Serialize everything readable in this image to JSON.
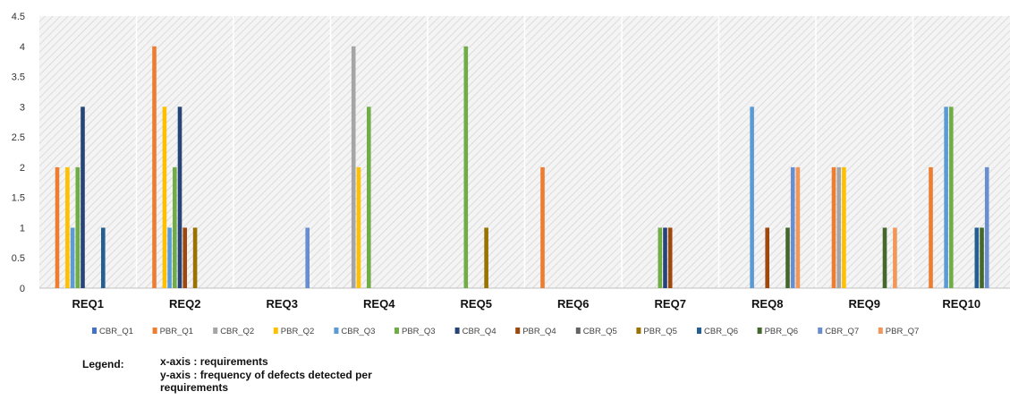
{
  "chart_data": {
    "type": "bar",
    "title": "",
    "xlabel": "",
    "ylabel": "",
    "ylim": [
      0,
      4.5
    ],
    "yticks": [
      0,
      0.5,
      1,
      1.5,
      2,
      2.5,
      3,
      3.5,
      4,
      4.5
    ],
    "ytick_labels": [
      "0",
      "0.5",
      "1",
      "1.5",
      "2",
      "2.5",
      "3",
      "3.5",
      "4",
      "4.5"
    ],
    "grid": false,
    "legend_position": "bottom",
    "categories": [
      "REQ1",
      "REQ2",
      "REQ3",
      "REQ4",
      "REQ5",
      "REQ6",
      "REQ7",
      "REQ8",
      "REQ9",
      "REQ10"
    ],
    "series": [
      {
        "name": "CBR_Q1",
        "color": "#4472C4",
        "values": [
          0,
          0,
          0,
          0,
          0,
          0,
          0,
          0,
          0,
          0
        ]
      },
      {
        "name": "PBR_Q1",
        "color": "#ED7D31",
        "values": [
          2,
          4,
          0,
          0,
          0,
          2,
          0,
          0,
          2,
          2
        ]
      },
      {
        "name": "CBR_Q2",
        "color": "#A5A5A5",
        "values": [
          0,
          0,
          0,
          4,
          0,
          0,
          0,
          0,
          2,
          0
        ]
      },
      {
        "name": "PBR_Q2",
        "color": "#FFC000",
        "values": [
          2,
          3,
          0,
          2,
          0,
          0,
          0,
          0,
          2,
          0
        ]
      },
      {
        "name": "CBR_Q3",
        "color": "#5B9BD5",
        "values": [
          1,
          1,
          0,
          0,
          0,
          0,
          0,
          3,
          0,
          3
        ]
      },
      {
        "name": "PBR_Q3",
        "color": "#70AD47",
        "values": [
          2,
          2,
          0,
          3,
          4,
          0,
          1,
          0,
          0,
          3
        ]
      },
      {
        "name": "CBR_Q4",
        "color": "#264478",
        "values": [
          3,
          3,
          0,
          0,
          0,
          0,
          1,
          0,
          0,
          0
        ]
      },
      {
        "name": "PBR_Q4",
        "color": "#9E480E",
        "values": [
          0,
          1,
          0,
          0,
          0,
          0,
          1,
          1,
          0,
          0
        ]
      },
      {
        "name": "CBR_Q5",
        "color": "#636363",
        "values": [
          0,
          0,
          0,
          0,
          0,
          0,
          0,
          0,
          0,
          0
        ]
      },
      {
        "name": "PBR_Q5",
        "color": "#997300",
        "values": [
          0,
          1,
          0,
          0,
          1,
          0,
          0,
          0,
          0,
          0
        ]
      },
      {
        "name": "CBR_Q6",
        "color": "#255E91",
        "values": [
          1,
          0,
          0,
          0,
          0,
          0,
          0,
          0,
          0,
          1
        ]
      },
      {
        "name": "PBR_Q6",
        "color": "#43682B",
        "values": [
          0,
          0,
          0,
          0,
          0,
          0,
          0,
          1,
          1,
          1
        ]
      },
      {
        "name": "CBR_Q7",
        "color": "#698ED0",
        "values": [
          0,
          0,
          1,
          0,
          0,
          0,
          0,
          2,
          0,
          2
        ]
      },
      {
        "name": "PBR_Q7",
        "color": "#F1975A",
        "values": [
          0,
          0,
          0,
          0,
          0,
          0,
          0,
          2,
          1,
          0
        ]
      }
    ]
  },
  "notes": {
    "legend_label": "Legend:",
    "x_axis_note": "x-axis : requirements",
    "y_axis_note_line1": "y-axis : frequency of defects detected per",
    "y_axis_note_line2": "requirements"
  }
}
